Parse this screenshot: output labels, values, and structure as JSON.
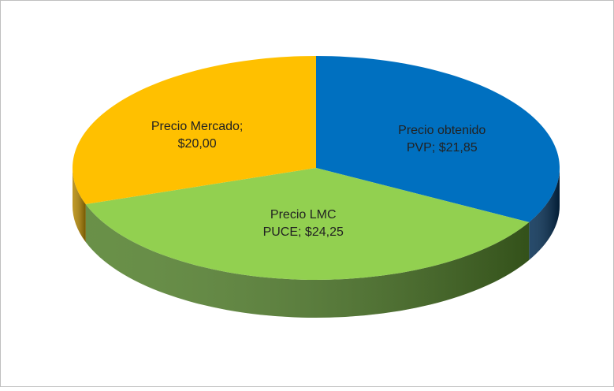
{
  "chart_data": {
    "type": "pie3d",
    "values": [
      21.85,
      24.25,
      20.0
    ],
    "value_labels": [
      [
        "Precio obtenido",
        "PVP; $21,85"
      ],
      [
        "Precio LMC",
        "PUCE; $24,25"
      ],
      [
        "Precio Mercado;",
        "$20,00"
      ]
    ],
    "colors": [
      "#0070c0",
      "#92d050",
      "#ffc000"
    ],
    "side_colors": [
      "#002a50",
      "#4f7d28",
      "#b38600"
    ]
  }
}
